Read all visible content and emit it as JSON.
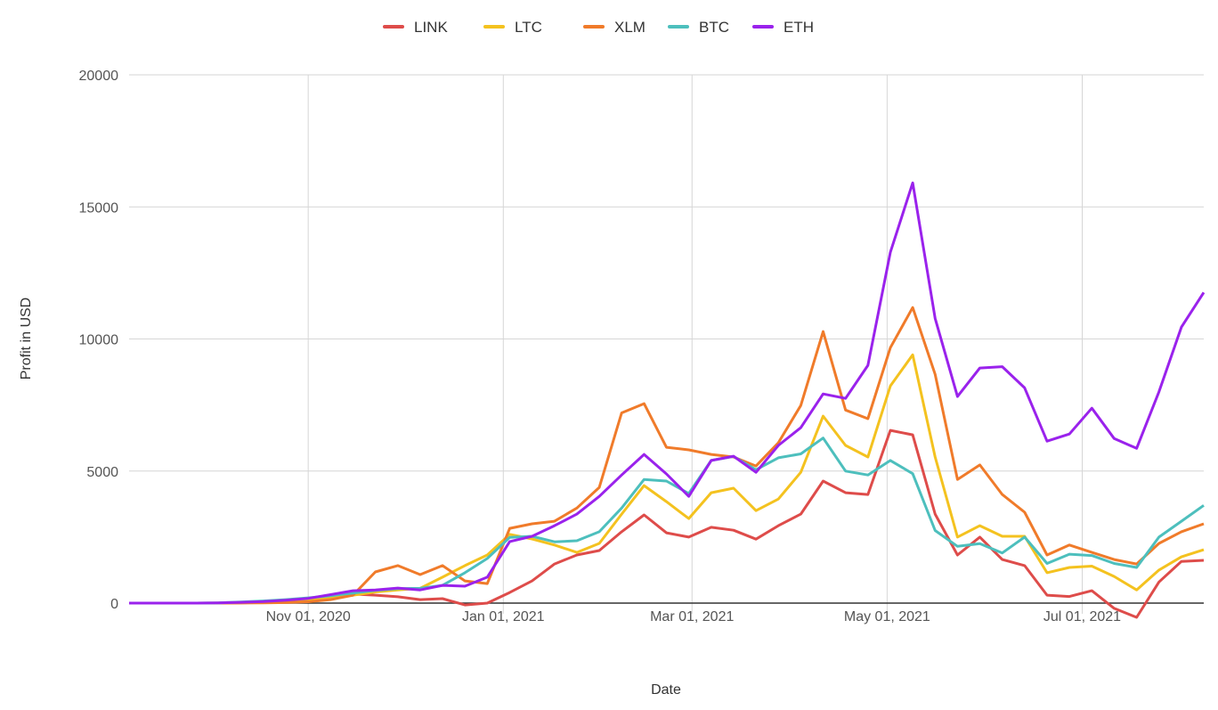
{
  "chart_data": {
    "type": "line",
    "title": "",
    "xlabel": "Date",
    "ylabel": "Profit in USD",
    "ylim": [
      0,
      20000
    ],
    "xlim": [
      "2020-09-06",
      "2021-08-08"
    ],
    "y_ticks": [
      "0",
      "5000",
      "10000",
      "15000",
      "20000"
    ],
    "y_tick_values": [
      0,
      5000,
      10000,
      15000,
      20000
    ],
    "x_ticks": [
      {
        "label": "Nov 01, 2020",
        "date": "2020-11-01"
      },
      {
        "label": "Jan 01, 2021",
        "date": "2021-01-01"
      },
      {
        "label": "Mar 01, 2021",
        "date": "2021-03-01"
      },
      {
        "label": "May 01, 2021",
        "date": "2021-05-01"
      },
      {
        "label": "Jul 01, 2021",
        "date": "2021-07-01"
      }
    ],
    "grid": true,
    "legend": "top",
    "x": [
      "2020-09-06",
      "2020-09-13",
      "2020-09-20",
      "2020-09-27",
      "2020-10-04",
      "2020-10-11",
      "2020-10-18",
      "2020-10-25",
      "2020-11-01",
      "2020-11-08",
      "2020-11-15",
      "2020-11-22",
      "2020-11-29",
      "2020-12-06",
      "2020-12-13",
      "2020-12-20",
      "2020-12-27",
      "2021-01-03",
      "2021-01-10",
      "2021-01-17",
      "2021-01-24",
      "2021-01-31",
      "2021-02-07",
      "2021-02-14",
      "2021-02-21",
      "2021-02-28",
      "2021-03-07",
      "2021-03-14",
      "2021-03-21",
      "2021-03-28",
      "2021-04-04",
      "2021-04-11",
      "2021-04-18",
      "2021-04-25",
      "2021-05-02",
      "2021-05-09",
      "2021-05-16",
      "2021-05-23",
      "2021-05-30",
      "2021-06-06",
      "2021-06-13",
      "2021-06-20",
      "2021-06-27",
      "2021-07-04",
      "2021-07-11",
      "2021-07-18",
      "2021-07-25",
      "2021-08-01",
      "2021-08-08"
    ],
    "series": [
      {
        "name": "LINK",
        "color": "#de4c4a",
        "values": [
          0,
          0,
          0,
          0,
          0,
          10,
          30,
          60,
          100,
          170,
          340,
          300,
          240,
          130,
          170,
          -70,
          0,
          400,
          840,
          1480,
          1820,
          1990,
          2700,
          3340,
          2660,
          2500,
          2870,
          2760,
          2420,
          2930,
          3370,
          4620,
          4180,
          4110,
          6540,
          6370,
          3370,
          1820,
          2500,
          1650,
          1420,
          300,
          250,
          470,
          -200,
          -540,
          800,
          1580,
          1620
        ]
      },
      {
        "name": "LTC",
        "color": "#f4c21f",
        "values": [
          0,
          0,
          0,
          0,
          5,
          20,
          50,
          80,
          120,
          200,
          300,
          420,
          500,
          560,
          980,
          1420,
          1820,
          2600,
          2430,
          2200,
          1920,
          2260,
          3370,
          4450,
          3840,
          3200,
          4180,
          4350,
          3500,
          3940,
          4950,
          7080,
          5970,
          5530,
          8220,
          9400,
          5530,
          2500,
          2930,
          2530,
          2530,
          1150,
          1350,
          1400,
          1010,
          500,
          1250,
          1750,
          2020
        ]
      },
      {
        "name": "XLM",
        "color": "#f07b2a",
        "values": [
          0,
          0,
          0,
          0,
          0,
          5,
          10,
          20,
          50,
          130,
          300,
          1180,
          1420,
          1080,
          1420,
          840,
          740,
          2830,
          3000,
          3100,
          3600,
          4380,
          7200,
          7550,
          5900,
          5800,
          5630,
          5530,
          5190,
          6070,
          7480,
          10280,
          7310,
          6980,
          9670,
          11190,
          8660,
          4680,
          5230,
          4110,
          3440,
          1820,
          2200,
          1920,
          1650,
          1480,
          2260,
          2700,
          3000
        ]
      },
      {
        "name": "BTC",
        "color": "#4dbfbd",
        "values": [
          0,
          0,
          0,
          0,
          10,
          40,
          80,
          130,
          200,
          280,
          380,
          480,
          550,
          560,
          670,
          1150,
          1690,
          2490,
          2530,
          2320,
          2360,
          2700,
          3600,
          4680,
          4620,
          4150,
          5400,
          5550,
          5050,
          5500,
          5650,
          6250,
          5000,
          4850,
          5400,
          4900,
          2750,
          2150,
          2250,
          1900,
          2500,
          1500,
          1850,
          1800,
          1500,
          1350,
          2500,
          3100,
          3700
        ]
      },
      {
        "name": "ETH",
        "color": "#9a22ec",
        "values": [
          0,
          0,
          0,
          0,
          10,
          30,
          60,
          110,
          180,
          320,
          470,
          500,
          570,
          500,
          670,
          640,
          980,
          2330,
          2530,
          2930,
          3370,
          4040,
          4850,
          5630,
          4890,
          4040,
          5400,
          5560,
          4950,
          5970,
          6640,
          7920,
          7750,
          9000,
          13280,
          15910,
          10780,
          7820,
          8900,
          8950,
          8150,
          6130,
          6400,
          7380,
          6230,
          5860,
          8000,
          10450,
          11760
        ]
      }
    ]
  }
}
